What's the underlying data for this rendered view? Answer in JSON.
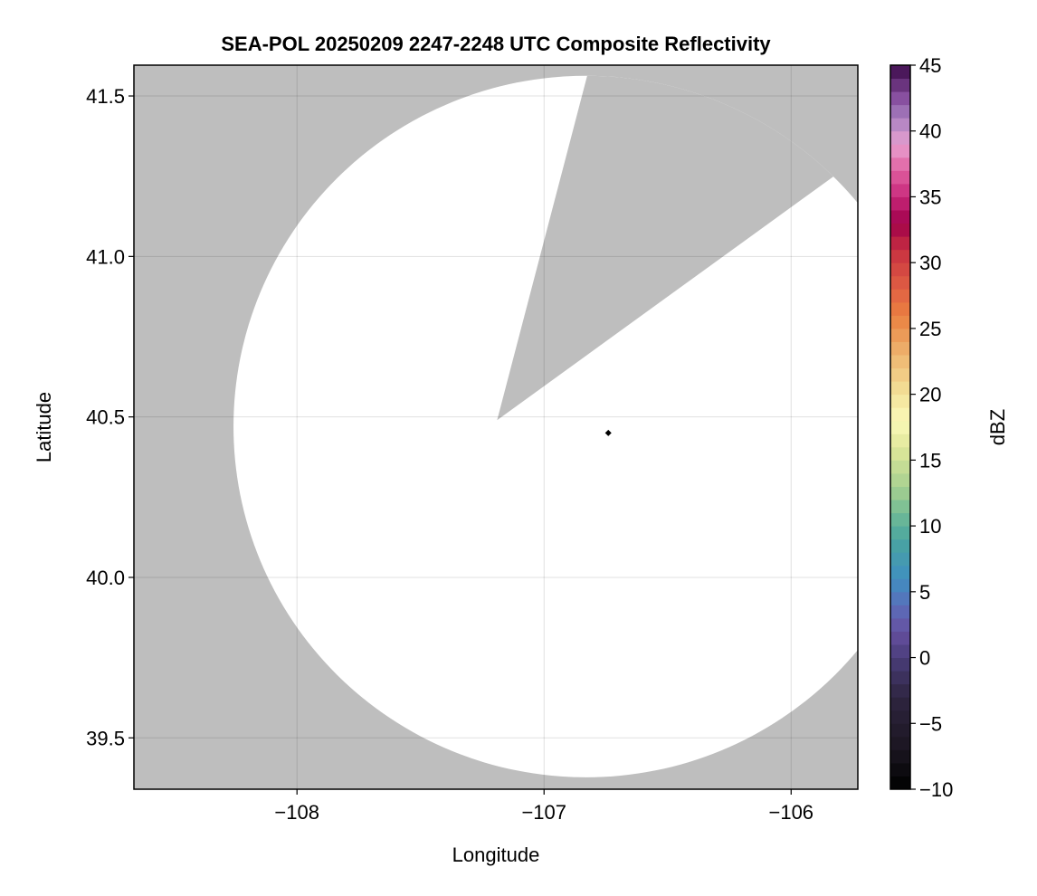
{
  "chart_data": {
    "type": "heatmap",
    "title": "SEA-POL 20250209 2247-2248 UTC Composite Reflectivity",
    "xlabel": "Longitude",
    "ylabel": "Latitude",
    "xlim": [
      -108.66,
      -105.73
    ],
    "ylim": [
      39.34,
      41.596
    ],
    "xticks": [
      -108,
      -107,
      -106
    ],
    "xtick_labels": [
      "−108",
      "−107",
      "−106"
    ],
    "yticks": [
      39.5,
      40.0,
      40.5,
      41.0,
      41.5
    ],
    "ytick_labels": [
      "39.5",
      "40.0",
      "40.5",
      "41.0",
      "41.5"
    ],
    "grid": true,
    "background_color": "#bebebe",
    "coverage_color": "#ffffff",
    "coverage": {
      "center_lon": -106.83,
      "center_lat": 40.47,
      "radius_deg_lon": 1.427,
      "radius_deg_lat": 1.093,
      "blocked_sector": {
        "apex": [
          -107.19,
          40.49
        ],
        "edge_points": [
          [
            -106.84,
            41.52
          ],
          [
            -106.06,
            41.12
          ]
        ]
      }
    },
    "radar_location": [
      -106.74,
      40.45
    ],
    "colorbar": {
      "label": "dBZ",
      "range": [
        -10,
        45
      ],
      "ticks": [
        -10,
        -5,
        0,
        5,
        10,
        15,
        20,
        25,
        30,
        35,
        40,
        45
      ],
      "tick_labels": [
        "−10",
        "−5",
        "0",
        "5",
        "10",
        "15",
        "20",
        "25",
        "30",
        "35",
        "40",
        "45"
      ],
      "bins": 55,
      "colormap": [
        [
          -10,
          "#000000"
        ],
        [
          -7,
          "#1a1520"
        ],
        [
          -3,
          "#2e2540"
        ],
        [
          0,
          "#4a3d7a"
        ],
        [
          2,
          "#6650a0"
        ],
        [
          4,
          "#5a6fbb"
        ],
        [
          6,
          "#3f8fc0"
        ],
        [
          9,
          "#4aa5a0"
        ],
        [
          11,
          "#72bc95"
        ],
        [
          13,
          "#a8d090"
        ],
        [
          16,
          "#e0e89a"
        ],
        [
          18,
          "#fbf9b8"
        ],
        [
          20,
          "#f3e29a"
        ],
        [
          23,
          "#eeb570"
        ],
        [
          26,
          "#ea8040"
        ],
        [
          28,
          "#e06044"
        ],
        [
          31,
          "#c83040"
        ],
        [
          33,
          "#a0004a"
        ],
        [
          35,
          "#c8287a"
        ],
        [
          37,
          "#e060a0"
        ],
        [
          39,
          "#e8a0d0"
        ],
        [
          41,
          "#a880c0"
        ],
        [
          42.5,
          "#8850a0"
        ],
        [
          45,
          "#3c0a4a"
        ]
      ]
    }
  }
}
